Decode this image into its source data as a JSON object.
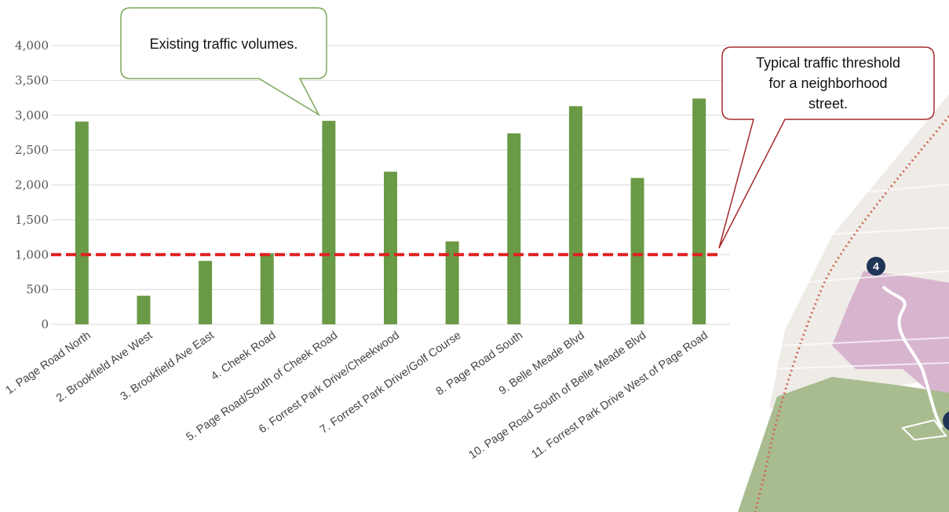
{
  "chart_data": {
    "type": "bar",
    "categories": [
      "1. Page Road North",
      "2. Brookfield Ave West",
      "3. Brookfield Ave East",
      "4. Cheek Road",
      "5. Page Road/South of Cheek Road",
      "6. Forrest Park Drive/Cheekwood",
      "7. Forrest Park Drive/Golf Course",
      "8. Page Road South",
      "9. Belle Meade Blvd",
      "10. Page Road South of Belle Meade Blvd",
      "11. Forrest Park Drive West of Page Road"
    ],
    "values": [
      2910,
      410,
      910,
      1020,
      2920,
      2190,
      1190,
      2740,
      3130,
      2100,
      3240
    ],
    "y_ticks": [
      "0",
      "500",
      "1,000",
      "1,500",
      "2,000",
      "2,500",
      "3,000",
      "3,500",
      "4,000"
    ],
    "ylim": [
      0,
      4000
    ],
    "grid": true,
    "threshold": {
      "value": 1000,
      "color": "#e02020",
      "style": "dashed"
    },
    "bar_color": "#6a9a45",
    "annotations": [
      {
        "id": "existing",
        "text_lines": [
          "Existing traffic volumes."
        ],
        "border_color": "#7aa85a",
        "points_to_category": 4
      },
      {
        "id": "threshold",
        "text_lines": [
          "Typical traffic threshold",
          "for a neighborhood",
          "street."
        ],
        "border_color": "#a52a2a",
        "points_to": "threshold"
      }
    ]
  },
  "map": {
    "marker_label": "4",
    "marker_color": "#1f3557",
    "park_color": "#a8bc8f",
    "campus_color": "#d8b5cf",
    "boundary_color": "#d06a55"
  }
}
